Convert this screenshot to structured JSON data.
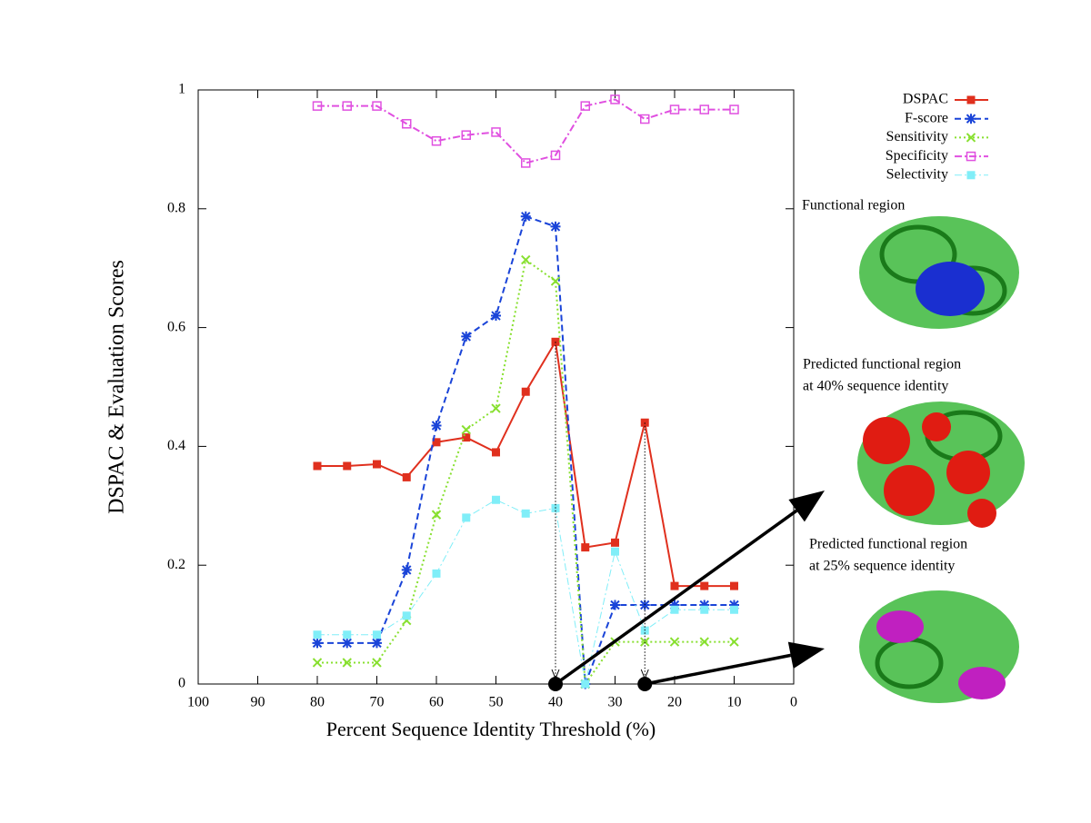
{
  "chart_data": {
    "type": "line",
    "xlabel": "Percent Sequence Identity Threshold (%)",
    "ylabel": "DSPAC & Evaluation Scores",
    "x": [
      80,
      75,
      70,
      65,
      60,
      55,
      50,
      45,
      40,
      35,
      30,
      25,
      20,
      15,
      10
    ],
    "series": [
      {
        "name": "DSPAC",
        "color": "#e0301e",
        "marker": "filled-square",
        "dash": "solid",
        "values": [
          0.367,
          0.367,
          0.37,
          0.348,
          0.407,
          0.415,
          0.39,
          0.492,
          0.576,
          0.23,
          0.238,
          0.44,
          0.165,
          0.165,
          0.165
        ]
      },
      {
        "name": "F-score",
        "color": "#1a44d8",
        "marker": "asterisk",
        "dash": "dashed",
        "values": [
          0.069,
          0.069,
          0.069,
          0.192,
          0.435,
          0.585,
          0.62,
          0.787,
          0.77,
          0,
          0.133,
          0.133,
          0.133,
          0.133,
          0.133
        ]
      },
      {
        "name": "Sensitivity",
        "color": "#88e030",
        "marker": "x",
        "dash": "dotted",
        "values": [
          0.036,
          0.036,
          0.036,
          0.107,
          0.285,
          0.428,
          0.464,
          0.714,
          0.678,
          0,
          0.071,
          0.071,
          0.071,
          0.071,
          0.071
        ]
      },
      {
        "name": "Specificity",
        "color": "#e050e0",
        "marker": "open-square",
        "dash": "dashdot",
        "values": [
          0.973,
          0.973,
          0.973,
          0.943,
          0.914,
          0.924,
          0.929,
          0.877,
          0.89,
          0.973,
          0.984,
          0.951,
          0.967,
          0.967,
          0.967
        ]
      },
      {
        "name": "Selectivity",
        "color": "#80eef8",
        "marker": "filled-square",
        "dash": "thin-dashdot",
        "values": [
          0.083,
          0.083,
          0.083,
          0.115,
          0.186,
          0.28,
          0.31,
          0.287,
          0.296,
          0,
          0.223,
          0.09,
          0.125,
          0.125,
          0.125
        ]
      }
    ],
    "xlim": [
      100,
      0
    ],
    "xticks": [
      100,
      90,
      80,
      70,
      60,
      50,
      40,
      30,
      20,
      10,
      0
    ],
    "ylim": [
      0,
      1
    ],
    "yticks": [
      0,
      0.2,
      0.4,
      0.6,
      0.8,
      1
    ],
    "legend": "outside-top-right",
    "highlight_x": [
      40,
      25
    ],
    "annotations": [
      "Functional region",
      "Predicted functional region",
      "at 40% sequence identity",
      "Predicted functional region",
      "at 25% sequence identity"
    ]
  }
}
